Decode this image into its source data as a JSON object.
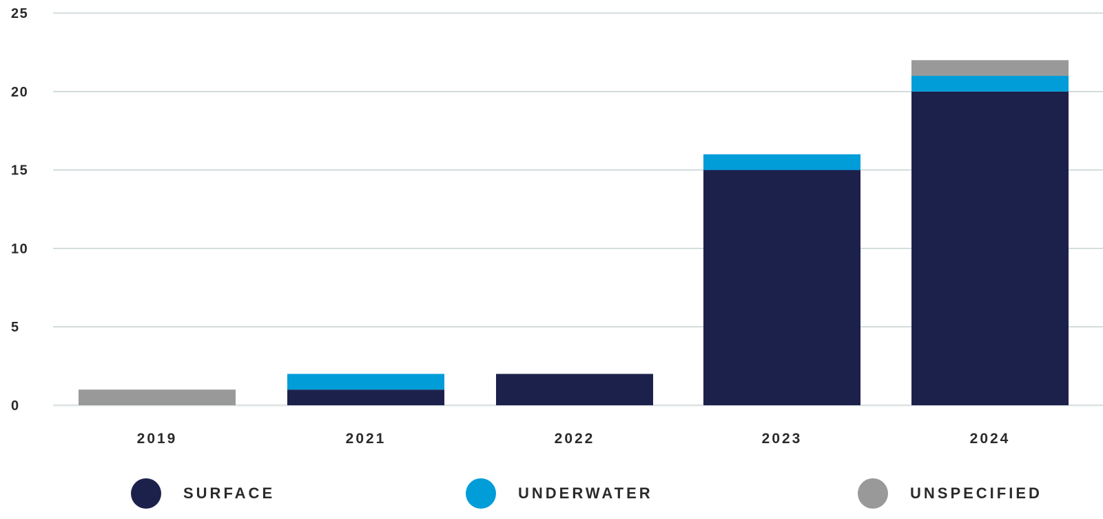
{
  "chart_data": {
    "type": "bar",
    "stacked": true,
    "categories": [
      "2019",
      "2021",
      "2022",
      "2023",
      "2024"
    ],
    "series": [
      {
        "name": "SURFACE",
        "values": [
          0,
          1,
          2,
          15,
          20
        ],
        "color": "#1c214c"
      },
      {
        "name": "UNDERWATER",
        "values": [
          0,
          1,
          0,
          1,
          1
        ],
        "color": "#009dd9"
      },
      {
        "name": "UNSPECIFIED",
        "values": [
          1,
          0,
          0,
          0,
          1
        ],
        "color": "#999999"
      }
    ],
    "ylim": [
      0,
      25
    ],
    "yticks": [
      "0",
      "5",
      "10",
      "15",
      "20",
      "25"
    ],
    "grid": true,
    "legend_position": "bottom",
    "title": "",
    "xlabel": "",
    "ylabel": ""
  }
}
